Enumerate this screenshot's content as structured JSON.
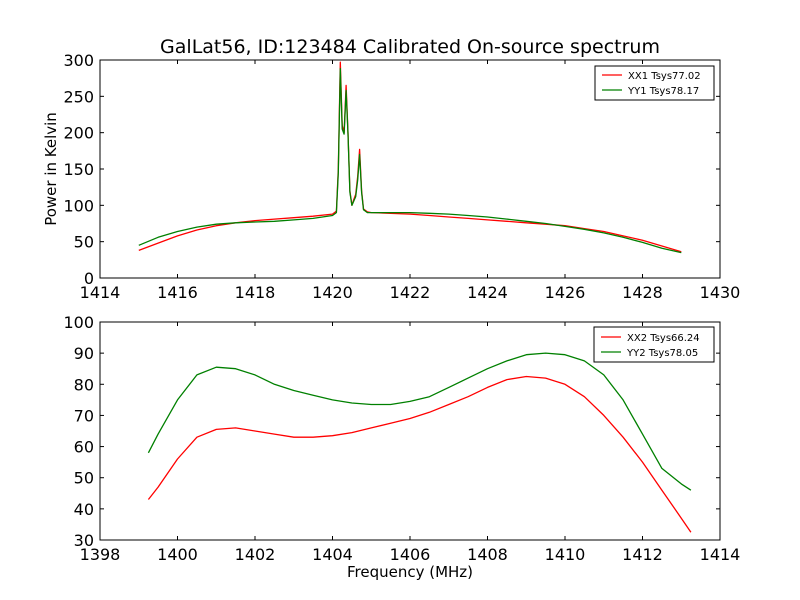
{
  "page": {
    "title": "GalLat56, ID:123484 Calibrated On-source spectrum",
    "xlabel": "Frequency (MHz)"
  },
  "colors": {
    "red": "#ff0000",
    "green": "#008000",
    "axis": "#000000",
    "background": "#ffffff"
  },
  "chart_data": [
    {
      "type": "line",
      "title": "GalLat56, ID:123484 Calibrated On-source spectrum",
      "xlabel": "",
      "ylabel": "Power in Kelvin",
      "xlim": [
        1414,
        1430
      ],
      "ylim": [
        0,
        300
      ],
      "xticks": [
        1414,
        1416,
        1418,
        1420,
        1422,
        1424,
        1426,
        1428,
        1430
      ],
      "yticks": [
        0,
        50,
        100,
        150,
        200,
        250,
        300
      ],
      "grid": false,
      "legend_position": "top-right",
      "series": [
        {
          "name": "XX1 Tsys77.02",
          "color": "#ff0000",
          "x": [
            1415.0,
            1415.5,
            1416.0,
            1416.5,
            1417.0,
            1417.5,
            1418.0,
            1418.5,
            1419.0,
            1419.5,
            1420.0,
            1420.1,
            1420.15,
            1420.2,
            1420.25,
            1420.3,
            1420.35,
            1420.4,
            1420.45,
            1420.5,
            1420.55,
            1420.6,
            1420.65,
            1420.7,
            1420.75,
            1420.8,
            1420.9,
            1421.0,
            1421.5,
            1422.0,
            1422.5,
            1423.0,
            1423.5,
            1424.0,
            1424.5,
            1425.0,
            1425.5,
            1426.0,
            1426.5,
            1427.0,
            1427.5,
            1428.0,
            1428.5,
            1429.0
          ],
          "y": [
            38,
            48,
            58,
            66,
            72,
            76,
            79,
            81,
            83,
            85,
            88,
            92,
            150,
            297,
            210,
            200,
            265,
            200,
            120,
            100,
            108,
            115,
            140,
            177,
            120,
            95,
            91,
            90,
            89,
            88,
            86,
            84,
            82,
            80,
            78,
            76,
            74,
            72,
            68,
            64,
            58,
            52,
            44,
            36
          ]
        },
        {
          "name": "YY1 Tsys78.17",
          "color": "#008000",
          "x": [
            1415.0,
            1415.5,
            1416.0,
            1416.5,
            1417.0,
            1417.5,
            1418.0,
            1418.5,
            1419.0,
            1419.5,
            1420.0,
            1420.1,
            1420.15,
            1420.2,
            1420.25,
            1420.3,
            1420.35,
            1420.4,
            1420.45,
            1420.5,
            1420.55,
            1420.6,
            1420.65,
            1420.7,
            1420.75,
            1420.8,
            1420.9,
            1421.0,
            1421.5,
            1422.0,
            1422.5,
            1423.0,
            1423.5,
            1424.0,
            1424.5,
            1425.0,
            1425.5,
            1426.0,
            1426.5,
            1427.0,
            1427.5,
            1428.0,
            1428.5,
            1429.0
          ],
          "y": [
            45,
            56,
            64,
            70,
            74,
            76,
            77,
            78,
            80,
            82,
            86,
            90,
            145,
            288,
            205,
            198,
            258,
            198,
            118,
            100,
            106,
            112,
            135,
            170,
            118,
            94,
            90,
            90,
            90,
            90,
            89,
            88,
            86,
            84,
            81,
            78,
            75,
            71,
            67,
            62,
            56,
            49,
            41,
            35
          ]
        }
      ]
    },
    {
      "type": "line",
      "title": "",
      "xlabel": "Frequency (MHz)",
      "ylabel": "",
      "xlim": [
        1398,
        1414
      ],
      "ylim": [
        30,
        100
      ],
      "xticks": [
        1398,
        1400,
        1402,
        1404,
        1406,
        1408,
        1410,
        1412,
        1414
      ],
      "yticks": [
        30,
        40,
        50,
        60,
        70,
        80,
        90,
        100
      ],
      "grid": false,
      "legend_position": "top-right",
      "series": [
        {
          "name": "XX2 Tsys66.24",
          "color": "#ff0000",
          "x": [
            1399.25,
            1399.5,
            1400.0,
            1400.5,
            1401.0,
            1401.5,
            1402.0,
            1402.5,
            1403.0,
            1403.5,
            1404.0,
            1404.5,
            1405.0,
            1405.5,
            1406.0,
            1406.5,
            1407.0,
            1407.5,
            1408.0,
            1408.5,
            1409.0,
            1409.5,
            1410.0,
            1410.5,
            1411.0,
            1411.5,
            1412.0,
            1412.5,
            1413.0,
            1413.25
          ],
          "y": [
            43,
            47,
            56,
            63,
            65.5,
            66,
            65,
            64,
            63,
            63,
            63.5,
            64.5,
            66,
            67.5,
            69,
            71,
            73.5,
            76,
            79,
            81.5,
            82.5,
            82,
            80,
            76,
            70,
            63,
            55,
            46,
            37,
            32.5
          ]
        },
        {
          "name": "YY2 Tsys78.05",
          "color": "#008000",
          "x": [
            1399.25,
            1399.5,
            1400.0,
            1400.5,
            1401.0,
            1401.5,
            1402.0,
            1402.5,
            1403.0,
            1403.5,
            1404.0,
            1404.5,
            1405.0,
            1405.5,
            1406.0,
            1406.5,
            1407.0,
            1407.5,
            1408.0,
            1408.5,
            1409.0,
            1409.5,
            1410.0,
            1410.5,
            1411.0,
            1411.5,
            1412.0,
            1412.5,
            1413.0,
            1413.25
          ],
          "y": [
            58,
            64,
            75,
            83,
            85.5,
            85,
            83,
            80,
            78,
            76.5,
            75,
            74,
            73.5,
            73.5,
            74.5,
            76,
            79,
            82,
            85,
            87.5,
            89.5,
            90,
            89.5,
            87.5,
            83,
            75,
            64,
            53,
            48,
            46
          ]
        }
      ]
    }
  ]
}
